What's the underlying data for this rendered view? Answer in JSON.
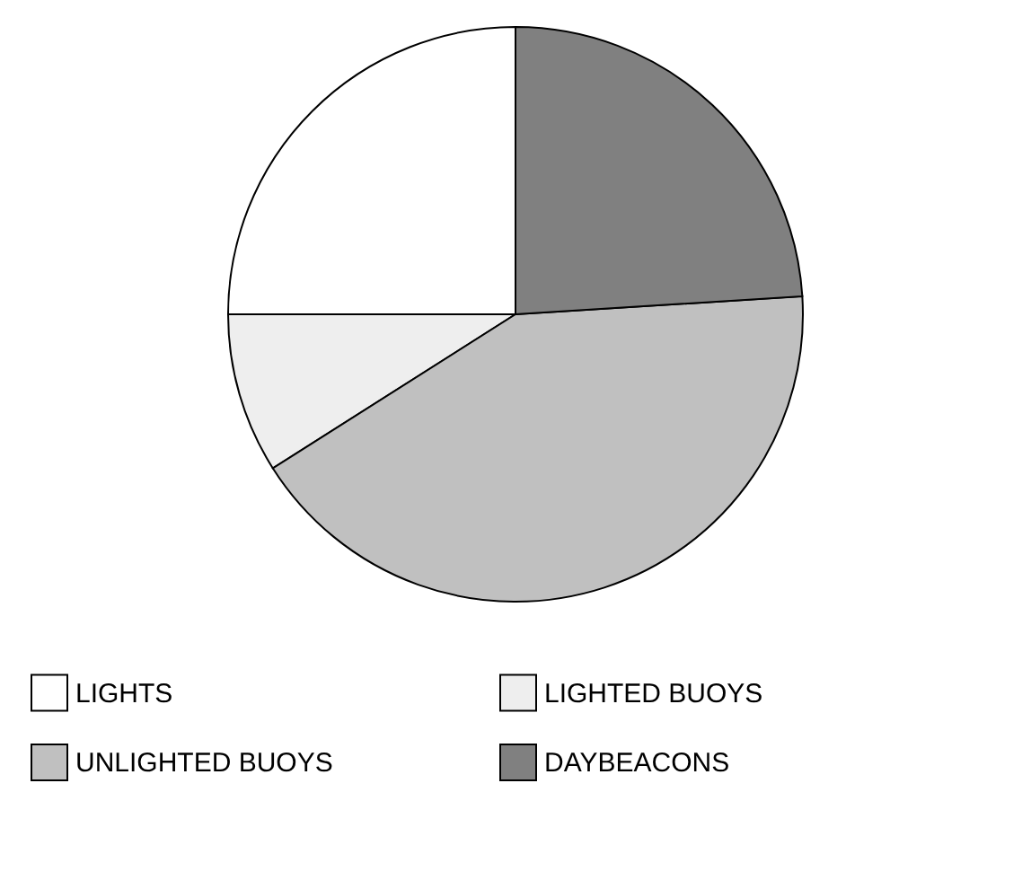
{
  "chart_data": {
    "type": "pie",
    "categories": [
      "LIGHTS",
      "LIGHTED BUOYS",
      "UNLIGHTED BUOYS",
      "DAYBEACONS"
    ],
    "values": [
      25,
      9,
      42,
      24
    ],
    "colors": [
      "#ffffff",
      "#eeeeee",
      "#c0c0c0",
      "#808080"
    ],
    "legend": "bottom"
  }
}
